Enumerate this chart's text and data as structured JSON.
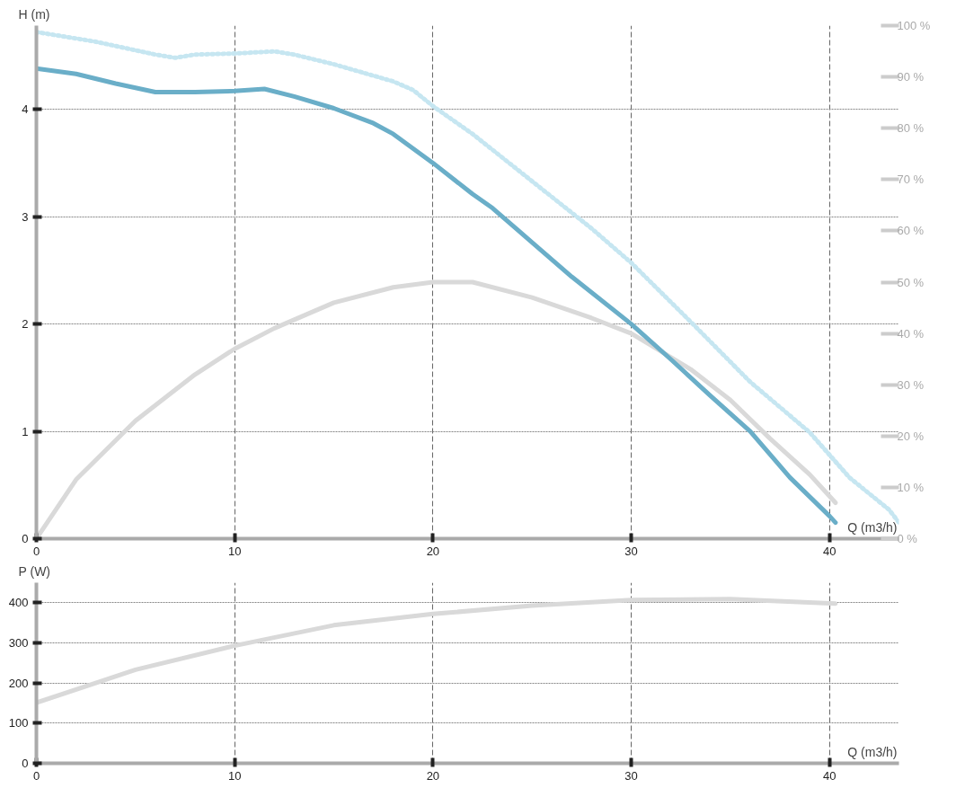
{
  "chart_data": [
    {
      "type": "line",
      "ylabel": "H (m)",
      "xlabel": "Q (m3/h)",
      "xlim": [
        0,
        43.5
      ],
      "xticks": [
        0,
        10,
        20,
        30,
        40
      ],
      "ylim": [
        0,
        4.78
      ],
      "yticks": [
        0,
        1,
        2,
        3,
        4
      ],
      "y2lim": [
        0,
        100
      ],
      "y2ticks": [
        {
          "value": 0,
          "label": "0 %"
        },
        {
          "value": 10,
          "label": "10 %"
        },
        {
          "value": 20,
          "label": "20 %"
        },
        {
          "value": 30,
          "label": "30 %"
        },
        {
          "value": 40,
          "label": "40 %"
        },
        {
          "value": 50,
          "label": "50 %"
        },
        {
          "value": 60,
          "label": "60 %"
        },
        {
          "value": 70,
          "label": "70 %"
        },
        {
          "value": 80,
          "label": "80 %"
        },
        {
          "value": 90,
          "label": "90 %"
        },
        {
          "value": 100,
          "label": "100 %"
        }
      ],
      "grid": true,
      "series": [
        {
          "color": "#c6e6f1",
          "line_style": "dotted",
          "x": [
            0,
            3,
            6,
            7,
            8,
            10,
            12,
            13,
            15,
            18,
            19,
            20,
            22,
            25,
            28,
            30,
            33,
            36,
            39,
            41,
            43,
            43.5
          ],
          "values": [
            4.72,
            4.63,
            4.51,
            4.48,
            4.51,
            4.52,
            4.54,
            4.51,
            4.42,
            4.26,
            4.18,
            4.03,
            3.77,
            3.33,
            2.89,
            2.57,
            2.02,
            1.46,
            0.99,
            0.57,
            0.27,
            0.15
          ]
        },
        {
          "color": "#d9d9d9",
          "axis": "y2",
          "x": [
            0,
            2,
            5,
            8,
            10,
            12,
            15,
            18,
            20,
            22,
            25,
            28,
            30,
            33,
            35,
            37,
            39,
            40.3
          ],
          "values": [
            0,
            11.5,
            23,
            32,
            37,
            41,
            46,
            49,
            50,
            50,
            47,
            43,
            40,
            33,
            27,
            19.5,
            12.5,
            7
          ]
        },
        {
          "color": "#6aaec8",
          "x": [
            0,
            2,
            4,
            6,
            8,
            10,
            11.5,
            13,
            15,
            17,
            18,
            20,
            22,
            23,
            25,
            27,
            30,
            32,
            34,
            36,
            38,
            40,
            40.3
          ],
          "values": [
            4.38,
            4.33,
            4.24,
            4.16,
            4.16,
            4.17,
            4.19,
            4.12,
            4.01,
            3.87,
            3.77,
            3.5,
            3.21,
            3.08,
            2.76,
            2.44,
            2.0,
            1.67,
            1.33,
            1.0,
            0.57,
            0.21,
            0.15
          ]
        }
      ]
    },
    {
      "type": "line",
      "ylabel": "P (W)",
      "xlabel": "Q (m3/h)",
      "xlim": [
        0,
        43.5
      ],
      "xticks": [
        0,
        10,
        20,
        30,
        40
      ],
      "ylim": [
        0,
        450
      ],
      "yticks": [
        0,
        100,
        200,
        300,
        400
      ],
      "grid": true,
      "series": [
        {
          "color": "#d9d9d9",
          "x": [
            0,
            5,
            10,
            15,
            20,
            25,
            30,
            35,
            40.3
          ],
          "values": [
            151,
            233,
            293,
            344,
            372,
            393,
            407,
            409,
            398
          ]
        }
      ]
    }
  ]
}
